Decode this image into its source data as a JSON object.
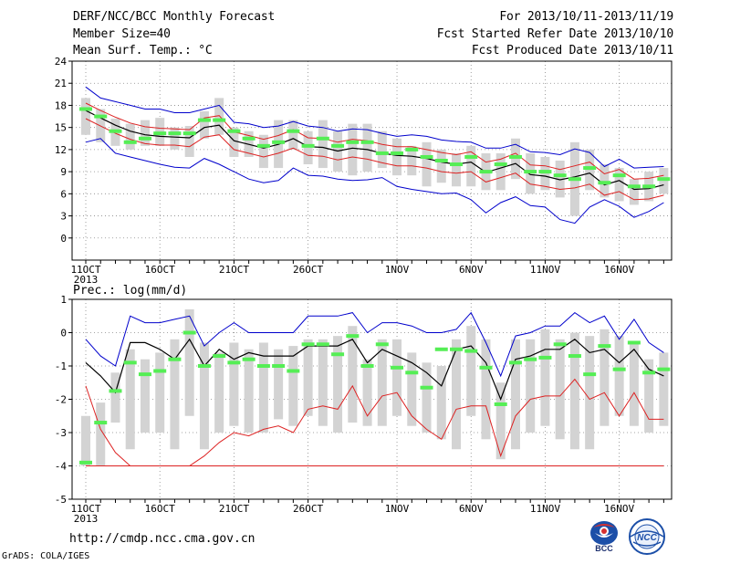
{
  "header": {
    "title": "DERF/NCC/BCC Monthly Forecast",
    "member_size": "Member Size=40",
    "variable": "Mean Surf. Temp.: °C",
    "period": "For 2013/10/11-2013/11/19",
    "start_date": "Fcst Started Refer Date 2013/10/10",
    "produced_date": "Fcst Produced Date 2013/10/11"
  },
  "footer": {
    "url": "http://cmdp.ncc.cma.gov.cn",
    "grads": "GrADS: COLA/IGES",
    "logo_bcc": "BCC",
    "logo_ncc": "NCC"
  },
  "colors": {
    "envelope": "#0000cc",
    "spread": "#dd2222",
    "mean": "#000000",
    "box": "#d3d3d3",
    "median": "#55ee55",
    "grid": "#888888"
  },
  "chart_data": [
    {
      "type": "line",
      "title": "Mean Surf. Temp.: °C",
      "categories": [
        "11OCT",
        "12OCT",
        "13OCT",
        "14OCT",
        "15OCT",
        "16OCT",
        "17OCT",
        "18OCT",
        "19OCT",
        "20OCT",
        "21OCT",
        "22OCT",
        "23OCT",
        "24OCT",
        "25OCT",
        "26OCT",
        "27OCT",
        "28OCT",
        "29OCT",
        "30OCT",
        "31OCT",
        "1NOV",
        "2NOV",
        "3NOV",
        "4NOV",
        "5NOV",
        "6NOV",
        "7NOV",
        "8NOV",
        "9NOV",
        "10NOV",
        "11NOV",
        "12NOV",
        "13NOV",
        "14NOV",
        "15NOV",
        "16NOV",
        "17NOV",
        "18NOV",
        "19NOV"
      ],
      "x_tick_labels": [
        "11OCT",
        "16OCT",
        "21OCT",
        "26OCT",
        "1NOV",
        "6NOV",
        "11NOV",
        "16NOV"
      ],
      "year_label": "2013",
      "ylim": [
        -3,
        24
      ],
      "y_ticks": [
        0,
        3,
        6,
        9,
        12,
        15,
        18,
        21,
        24
      ],
      "grid": true,
      "series": [
        {
          "role": "max",
          "values": [
            20.5,
            19.0,
            18.5,
            18.0,
            17.5,
            17.5,
            17.0,
            17.0,
            17.5,
            18.0,
            15.7,
            15.5,
            15.0,
            15.2,
            15.8,
            15.2,
            15.0,
            14.5,
            14.8,
            14.7,
            14.2,
            13.8,
            14.0,
            13.8,
            13.3,
            13.1,
            13.0,
            12.2,
            12.2,
            12.7,
            11.7,
            11.6,
            11.3,
            12.1,
            11.6,
            9.7,
            10.7,
            9.5,
            9.6,
            9.7
          ]
        },
        {
          "role": "upper",
          "values": [
            18.3,
            17.3,
            16.4,
            15.6,
            15.1,
            14.9,
            14.8,
            14.7,
            16.3,
            16.6,
            14.4,
            13.9,
            13.4,
            13.9,
            14.7,
            13.6,
            13.5,
            13.0,
            13.4,
            13.2,
            12.7,
            12.4,
            12.4,
            12.0,
            11.6,
            11.3,
            11.7,
            10.3,
            10.7,
            11.5,
            9.9,
            9.8,
            9.3,
            9.8,
            10.3,
            8.7,
            9.3,
            8.0,
            8.1,
            8.5
          ]
        },
        {
          "role": "mean",
          "values": [
            17.3,
            16.3,
            15.3,
            14.5,
            14.0,
            13.8,
            13.7,
            13.6,
            15.0,
            15.3,
            13.2,
            12.7,
            12.2,
            12.7,
            13.5,
            12.4,
            12.3,
            11.8,
            12.2,
            12.0,
            11.5,
            11.2,
            11.1,
            10.8,
            10.3,
            10.0,
            10.3,
            8.9,
            9.5,
            10.1,
            8.6,
            8.4,
            7.9,
            8.3,
            8.8,
            7.2,
            7.8,
            6.6,
            6.7,
            7.2
          ]
        },
        {
          "role": "lower",
          "values": [
            16.2,
            15.2,
            14.2,
            13.4,
            12.8,
            12.6,
            12.6,
            12.4,
            13.7,
            14.0,
            12.0,
            11.5,
            11.0,
            11.5,
            12.2,
            11.2,
            11.1,
            10.6,
            11.0,
            10.7,
            10.2,
            9.8,
            9.8,
            9.5,
            9.0,
            8.8,
            9.0,
            7.6,
            8.2,
            8.8,
            7.3,
            7.0,
            6.6,
            6.8,
            7.3,
            5.8,
            6.3,
            5.2,
            5.3,
            5.8
          ]
        },
        {
          "role": "min",
          "values": [
            13.0,
            13.5,
            11.5,
            11.0,
            10.5,
            10.0,
            9.6,
            9.5,
            10.8,
            10.0,
            9.0,
            8.0,
            7.5,
            7.8,
            9.5,
            8.5,
            8.4,
            8.0,
            7.8,
            7.9,
            8.2,
            7.0,
            6.6,
            6.3,
            6.0,
            6.1,
            5.2,
            3.4,
            4.8,
            5.6,
            4.4,
            4.2,
            2.5,
            2.0,
            4.2,
            5.2,
            4.3,
            2.8,
            3.6,
            4.8
          ]
        },
        {
          "role": "box_top",
          "values": [
            19.0,
            17.5,
            16.2,
            15.5,
            16.0,
            16.3,
            15.0,
            15.2,
            17.2,
            19.0,
            15.0,
            14.5,
            14.0,
            16.0,
            16.0,
            14.5,
            16.0,
            14.5,
            15.5,
            15.5,
            14.5,
            13.5,
            12.5,
            13.0,
            12.0,
            11.5,
            12.5,
            11.5,
            11.5,
            13.5,
            11.5,
            11.0,
            10.5,
            13.0,
            12.0,
            10.0,
            9.5,
            8.0,
            9.0,
            9.5
          ]
        },
        {
          "role": "box_bottom",
          "values": [
            14.0,
            13.0,
            12.5,
            12.0,
            12.5,
            12.5,
            12.0,
            11.0,
            13.5,
            14.0,
            11.0,
            11.0,
            9.5,
            9.5,
            12.0,
            10.0,
            9.5,
            9.0,
            8.5,
            9.0,
            9.5,
            8.5,
            8.5,
            7.0,
            7.5,
            7.0,
            7.0,
            6.5,
            6.5,
            8.0,
            6.0,
            6.5,
            5.5,
            3.0,
            6.5,
            5.5,
            5.0,
            4.5,
            5.0,
            6.0
          ]
        },
        {
          "role": "median",
          "values": [
            17.5,
            16.5,
            14.5,
            13.0,
            13.5,
            14.2,
            14.2,
            14.2,
            16.0,
            16.0,
            14.5,
            13.5,
            12.5,
            13.0,
            14.5,
            12.5,
            13.5,
            12.5,
            13.0,
            13.0,
            11.5,
            11.5,
            12.0,
            11.0,
            10.5,
            10.0,
            11.0,
            9.0,
            10.0,
            11.0,
            9.0,
            9.0,
            8.5,
            8.0,
            9.5,
            7.5,
            8.5,
            7.0,
            7.0,
            8.0
          ]
        }
      ]
    },
    {
      "type": "line",
      "title": "Prec.: log(mm/d)",
      "categories": [
        "11OCT",
        "12OCT",
        "13OCT",
        "14OCT",
        "15OCT",
        "16OCT",
        "17OCT",
        "18OCT",
        "19OCT",
        "20OCT",
        "21OCT",
        "22OCT",
        "23OCT",
        "24OCT",
        "25OCT",
        "26OCT",
        "27OCT",
        "28OCT",
        "29OCT",
        "30OCT",
        "31OCT",
        "1NOV",
        "2NOV",
        "3NOV",
        "4NOV",
        "5NOV",
        "6NOV",
        "7NOV",
        "8NOV",
        "9NOV",
        "10NOV",
        "11NOV",
        "12NOV",
        "13NOV",
        "14NOV",
        "15NOV",
        "16NOV",
        "17NOV",
        "18NOV",
        "19NOV"
      ],
      "x_tick_labels": [
        "11OCT",
        "16OCT",
        "21OCT",
        "26OCT",
        "1NOV",
        "6NOV",
        "11NOV",
        "16NOV"
      ],
      "year_label": "2013",
      "ylim": [
        -5,
        1
      ],
      "y_ticks": [
        -5,
        -4,
        -3,
        -2,
        -1,
        0,
        1
      ],
      "grid": true,
      "series": [
        {
          "role": "max",
          "values": [
            -0.2,
            -0.7,
            -1.0,
            0.5,
            0.3,
            0.3,
            0.4,
            0.5,
            -0.4,
            0.0,
            0.3,
            0.0,
            0.0,
            0.0,
            0.0,
            0.5,
            0.5,
            0.5,
            0.6,
            0.0,
            0.3,
            0.3,
            0.2,
            0.0,
            0.0,
            0.1,
            0.6,
            -0.3,
            -1.3,
            -0.1,
            0.0,
            0.2,
            0.2,
            0.6,
            0.3,
            0.5,
            -0.2,
            0.4,
            -0.3,
            -0.6
          ]
        },
        {
          "role": "mean",
          "values": [
            -0.9,
            -1.3,
            -1.8,
            -0.3,
            -0.3,
            -0.5,
            -0.8,
            -0.2,
            -1.0,
            -0.5,
            -0.8,
            -0.6,
            -0.7,
            -0.7,
            -0.7,
            -0.4,
            -0.4,
            -0.4,
            -0.2,
            -0.9,
            -0.5,
            -0.7,
            -0.9,
            -1.2,
            -1.6,
            -0.5,
            -0.4,
            -0.9,
            -2.0,
            -0.8,
            -0.7,
            -0.5,
            -0.5,
            -0.2,
            -0.6,
            -0.5,
            -0.9,
            -0.5,
            -1.1,
            -1.3
          ]
        },
        {
          "role": "lower",
          "values": [
            -1.6,
            -2.9,
            -3.6,
            -4.0,
            -4.0,
            -4.0,
            -4.0,
            -4.0,
            -3.7,
            -3.3,
            -3.0,
            -3.1,
            -2.9,
            -2.8,
            -3.0,
            -2.3,
            -2.2,
            -2.3,
            -1.6,
            -2.5,
            -1.9,
            -1.8,
            -2.5,
            -2.9,
            -3.2,
            -2.3,
            -2.2,
            -2.2,
            -3.7,
            -2.5,
            -2.0,
            -1.9,
            -1.9,
            -1.4,
            -2.0,
            -1.8,
            -2.5,
            -1.8,
            -2.6,
            -2.6
          ]
        },
        {
          "role": "floor",
          "values": [
            -4.0,
            -4.0,
            -4.0,
            -4.0,
            -4.0,
            -4.0,
            -4.0,
            -4.0,
            -4.0,
            -4.0,
            -4.0,
            -4.0,
            -4.0,
            -4.0,
            -4.0,
            -4.0,
            -4.0,
            -4.0,
            -4.0,
            -4.0,
            -4.0,
            -4.0,
            -4.0,
            -4.0,
            -4.0,
            -4.0,
            -4.0,
            -4.0,
            -4.0,
            -4.0,
            -4.0,
            -4.0,
            -4.0,
            -4.0,
            -4.0,
            -4.0,
            -4.0,
            -4.0,
            -4.0,
            -4.0
          ]
        },
        {
          "role": "box_top",
          "values": [
            -2.5,
            -2.1,
            -1.2,
            -0.5,
            -0.8,
            -0.6,
            -0.2,
            0.7,
            -0.3,
            -0.6,
            -0.3,
            -0.5,
            -0.3,
            -0.5,
            -0.4,
            -0.2,
            -0.2,
            -0.1,
            0.2,
            -0.8,
            -0.2,
            -0.2,
            -0.6,
            -0.9,
            -1.0,
            -0.2,
            0.2,
            -0.2,
            -1.5,
            -0.2,
            -0.2,
            0.1,
            -0.2,
            0.0,
            -0.1,
            0.1,
            -0.1,
            -0.3,
            -0.8,
            -0.6
          ]
        },
        {
          "role": "box_bottom",
          "values": [
            -4.0,
            -4.0,
            -2.7,
            -3.5,
            -3.0,
            -3.0,
            -3.5,
            -2.5,
            -3.5,
            -3.0,
            -2.8,
            -3.0,
            -3.0,
            -2.6,
            -2.8,
            -2.5,
            -2.8,
            -3.0,
            -2.7,
            -2.8,
            -2.8,
            -2.5,
            -2.8,
            -3.0,
            -3.2,
            -3.5,
            -2.5,
            -3.2,
            -3.8,
            -3.5,
            -3.0,
            -2.8,
            -3.2,
            -3.5,
            -3.5,
            -2.8,
            -2.5,
            -2.8,
            -3.0,
            -2.8
          ]
        },
        {
          "role": "median",
          "values": [
            -3.9,
            -2.7,
            -1.75,
            -0.9,
            -1.25,
            -1.15,
            -0.8,
            0.0,
            -1.0,
            -0.7,
            -0.9,
            -0.8,
            -1.0,
            -1.0,
            -1.15,
            -0.35,
            -0.35,
            -0.65,
            -0.1,
            -1.0,
            -0.35,
            -1.05,
            -1.2,
            -1.65,
            -0.5,
            -0.5,
            -0.55,
            -1.05,
            -2.15,
            -0.9,
            -0.8,
            -0.75,
            -0.35,
            -0.7,
            -1.25,
            -0.4,
            -1.1,
            -0.3,
            -1.2,
            -1.1
          ]
        }
      ]
    }
  ]
}
